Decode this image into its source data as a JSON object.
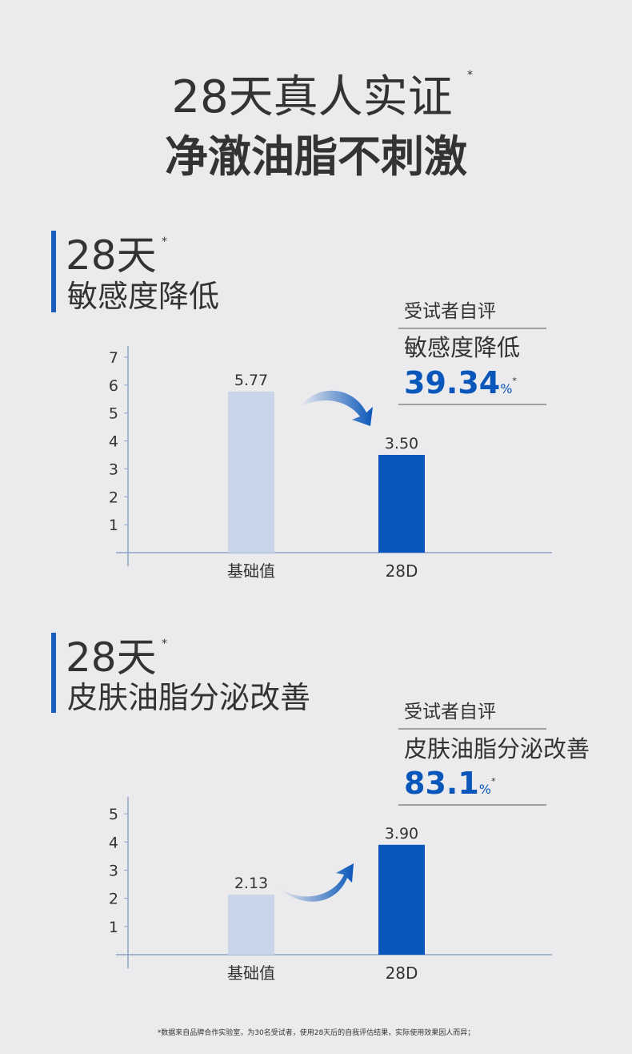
{
  "header": {
    "title_line1": "28天真人实证",
    "title_mark": "*",
    "title_line2": "净澈油脂不刺激"
  },
  "chart_data": [
    {
      "type": "bar",
      "heading": "28天",
      "heading_mark": "*",
      "title": "敏感度降低",
      "callout_label": "受试者自评",
      "callout_title": "敏感度降低",
      "callout_value": 39.34,
      "callout_unit": "%",
      "callout_mark": "*",
      "categories": [
        "基础值",
        "28D"
      ],
      "values": [
        5.77,
        3.5
      ],
      "value_labels": [
        "5.77",
        "3.50"
      ],
      "colors": [
        "#c9d5e8",
        "#0a57bb"
      ],
      "ylim": [
        0,
        7.4
      ],
      "yticks": [
        1,
        2,
        3,
        4,
        5,
        6,
        7
      ]
    },
    {
      "type": "bar",
      "heading": "28天",
      "heading_mark": "*",
      "title": "皮肤油脂分泌改善",
      "callout_label": "受试者自评",
      "callout_title": "皮肤油脂分泌改善",
      "callout_value": 83.1,
      "callout_unit": "%",
      "callout_mark": "*",
      "categories": [
        "基础值",
        "28D"
      ],
      "values": [
        2.13,
        3.9
      ],
      "value_labels": [
        "2.13",
        "3.90"
      ],
      "colors": [
        "#c9d5e8",
        "#0a57bb"
      ],
      "ylim": [
        0,
        5.6
      ],
      "yticks": [
        1,
        2,
        3,
        4,
        5
      ]
    }
  ],
  "footnote": "*数据来自品牌合作实验室，为30名受试者，使用28天后的自我评估结果，实际使用效果因人而异；"
}
